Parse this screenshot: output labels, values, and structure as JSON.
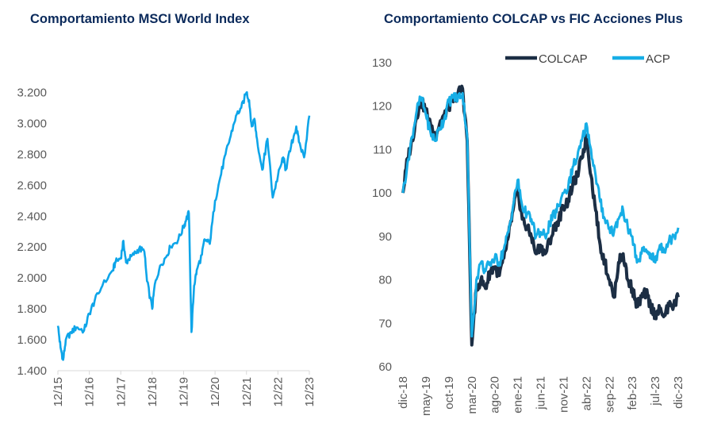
{
  "charts": {
    "msci": {
      "title": "Comportamiento MSCI World Index"
    },
    "colcap": {
      "title": "Comportamiento COLCAP vs FIC Acciones Plus"
    }
  },
  "chart_data": [
    {
      "type": "line",
      "title": "Comportamiento MSCI World Index",
      "xlabel": "",
      "ylabel": "",
      "ylim": [
        1400,
        3300
      ],
      "y_ticks": [
        1400,
        1600,
        1800,
        2000,
        2200,
        2400,
        2600,
        2800,
        3000,
        3200
      ],
      "y_tick_labels": [
        "1.400",
        "1.600",
        "1.800",
        "2.000",
        "2.200",
        "2.400",
        "2.600",
        "2.800",
        "3.000",
        "3.200"
      ],
      "x_tick_labels": [
        "12/15",
        "12/16",
        "12/17",
        "12/18",
        "12/19",
        "12/20",
        "12/21",
        "12/22",
        "12/23"
      ],
      "grid": false,
      "color": "#0ea5e9",
      "series": [
        {
          "x": [
            "2015-12",
            "2016-01",
            "2016-02",
            "2016-03",
            "2016-05",
            "2016-07",
            "2016-10",
            "2016-12",
            "2017-02",
            "2017-05",
            "2017-09",
            "2017-10",
            "2017-12",
            "2018-01",
            "2018-02",
            "2018-03",
            "2018-05",
            "2018-07",
            "2018-09",
            "2018-10",
            "2018-12",
            "2019-01",
            "2019-03",
            "2019-05",
            "2019-07",
            "2019-10",
            "2019-12",
            "2020-01",
            "2020-02",
            "2020-03",
            "2020-04",
            "2020-05",
            "2020-07",
            "2020-08",
            "2020-10",
            "2020-12",
            "2021-02",
            "2021-04",
            "2021-06",
            "2021-08",
            "2021-10",
            "2021-12",
            "2022-01",
            "2022-02",
            "2022-03",
            "2022-04",
            "2022-06",
            "2022-07",
            "2022-08",
            "2022-10",
            "2022-12",
            "2023-02",
            "2023-03",
            "2023-05",
            "2023-07",
            "2023-08",
            "2023-10",
            "2023-12"
          ],
          "values": [
            1690,
            1550,
            1470,
            1600,
            1650,
            1680,
            1660,
            1770,
            1850,
            1950,
            2050,
            2100,
            2130,
            2240,
            2100,
            2120,
            2150,
            2190,
            2170,
            1980,
            1800,
            1960,
            2080,
            2130,
            2200,
            2250,
            2330,
            2380,
            2420,
            1650,
            1950,
            2050,
            2150,
            2250,
            2220,
            2500,
            2650,
            2800,
            2920,
            3050,
            3100,
            3200,
            3150,
            2980,
            3030,
            2900,
            2700,
            2800,
            2900,
            2520,
            2660,
            2780,
            2700,
            2850,
            2980,
            2880,
            2780,
            3050
          ]
        }
      ]
    },
    {
      "type": "line",
      "title": "Comportamiento COLCAP vs FIC Acciones Plus",
      "xlabel": "",
      "ylabel": "",
      "ylim": [
        60,
        130
      ],
      "y_ticks": [
        60,
        70,
        80,
        90,
        100,
        110,
        120,
        130
      ],
      "y_tick_labels": [
        "60",
        "70",
        "80",
        "90",
        "100",
        "110",
        "120",
        "130"
      ],
      "x_tick_labels": [
        "dic-18",
        "may-19",
        "oct-19",
        "mar-20",
        "ago-20",
        "ene-21",
        "jun-21",
        "nov-21",
        "abr-22",
        "sep-22",
        "feb-23",
        "jul-23",
        "dic-23"
      ],
      "grid": false,
      "legend_position": "top-right",
      "x": [
        "2018-12",
        "2019-01",
        "2019-02",
        "2019-03",
        "2019-04",
        "2019-05",
        "2019-06",
        "2019-07",
        "2019-08",
        "2019-09",
        "2019-10",
        "2019-11",
        "2019-12",
        "2020-01",
        "2020-02",
        "2020-03",
        "2020-04",
        "2020-05",
        "2020-06",
        "2020-07",
        "2020-08",
        "2020-09",
        "2020-10",
        "2020-11",
        "2020-12",
        "2021-01",
        "2021-02",
        "2021-03",
        "2021-04",
        "2021-05",
        "2021-06",
        "2021-07",
        "2021-08",
        "2021-09",
        "2021-10",
        "2021-11",
        "2021-12",
        "2022-01",
        "2022-02",
        "2022-03",
        "2022-04",
        "2022-05",
        "2022-06",
        "2022-07",
        "2022-08",
        "2022-09",
        "2022-10",
        "2022-11",
        "2022-12",
        "2023-01",
        "2023-02",
        "2023-03",
        "2023-04",
        "2023-05",
        "2023-06",
        "2023-07",
        "2023-08",
        "2023-09",
        "2023-10",
        "2023-11",
        "2023-12"
      ],
      "series": [
        {
          "name": "COLCAP",
          "color": "#1c2e44",
          "values": [
            100,
            108,
            112,
            118,
            121,
            119,
            116,
            113,
            116,
            118,
            120,
            121,
            123,
            124,
            112,
            65,
            78,
            80,
            78,
            82,
            83,
            81,
            85,
            90,
            96,
            101,
            94,
            92,
            90,
            86,
            88,
            86,
            89,
            92,
            94,
            97,
            98,
            102,
            104,
            108,
            113,
            104,
            96,
            88,
            84,
            80,
            76,
            84,
            86,
            80,
            78,
            74,
            76,
            77,
            74,
            72,
            73,
            72,
            74,
            74,
            76
          ],
          "width": 4
        },
        {
          "name": "ACP",
          "color": "#17aee6",
          "values": [
            100,
            107,
            113,
            119,
            122,
            118,
            114,
            112,
            115,
            117,
            121,
            122,
            122,
            123,
            113,
            67,
            80,
            84,
            82,
            84,
            85,
            84,
            87,
            91,
            97,
            103,
            97,
            95,
            94,
            90,
            91,
            90,
            93,
            95,
            97,
            100,
            101,
            106,
            108,
            112,
            116,
            110,
            104,
            98,
            94,
            92,
            91,
            94,
            96,
            92,
            90,
            84,
            86,
            87,
            86,
            84,
            88,
            87,
            89,
            90,
            92
          ],
          "width": 3
        }
      ]
    }
  ]
}
